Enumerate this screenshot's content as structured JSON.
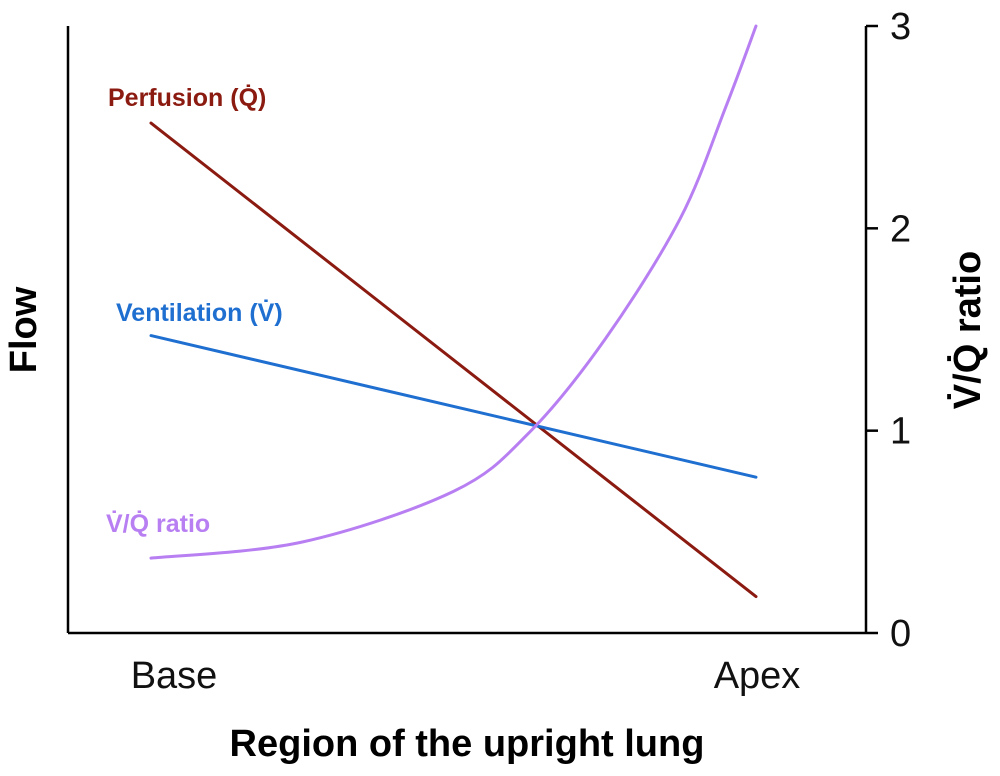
{
  "chart_data": {
    "type": "line",
    "xlabel": "Region of the upright lung",
    "ylabel_left": "Flow",
    "ylabel_right": "V̇/Q̇ ratio",
    "x_categories": [
      "Base",
      "Apex"
    ],
    "x": [
      0,
      0.25,
      0.5,
      0.625,
      0.75,
      0.875,
      1.0
    ],
    "y_right_ticks": [
      "0",
      "1",
      "2",
      "3"
    ],
    "y_right_lim": [
      0,
      3
    ],
    "grid": false,
    "series": [
      {
        "name": "Perfusion (Q̇)",
        "axis": "left",
        "color": "#8b1a10",
        "x": [
          0,
          1
        ],
        "values": [
          2.52,
          0.18
        ]
      },
      {
        "name": "Ventilation (V̇)",
        "axis": "left",
        "color": "#1f6fd1",
        "x": [
          0,
          1
        ],
        "values": [
          1.47,
          0.77
        ]
      },
      {
        "name": "V̇/Q̇ ratio",
        "axis": "right",
        "color": "#b87ff2",
        "x": [
          0,
          0.25,
          0.5,
          0.625,
          0.75,
          0.875,
          0.95,
          1.0
        ],
        "values": [
          0.37,
          0.45,
          0.7,
          0.99,
          1.45,
          2.05,
          2.6,
          3.0
        ]
      }
    ]
  }
}
